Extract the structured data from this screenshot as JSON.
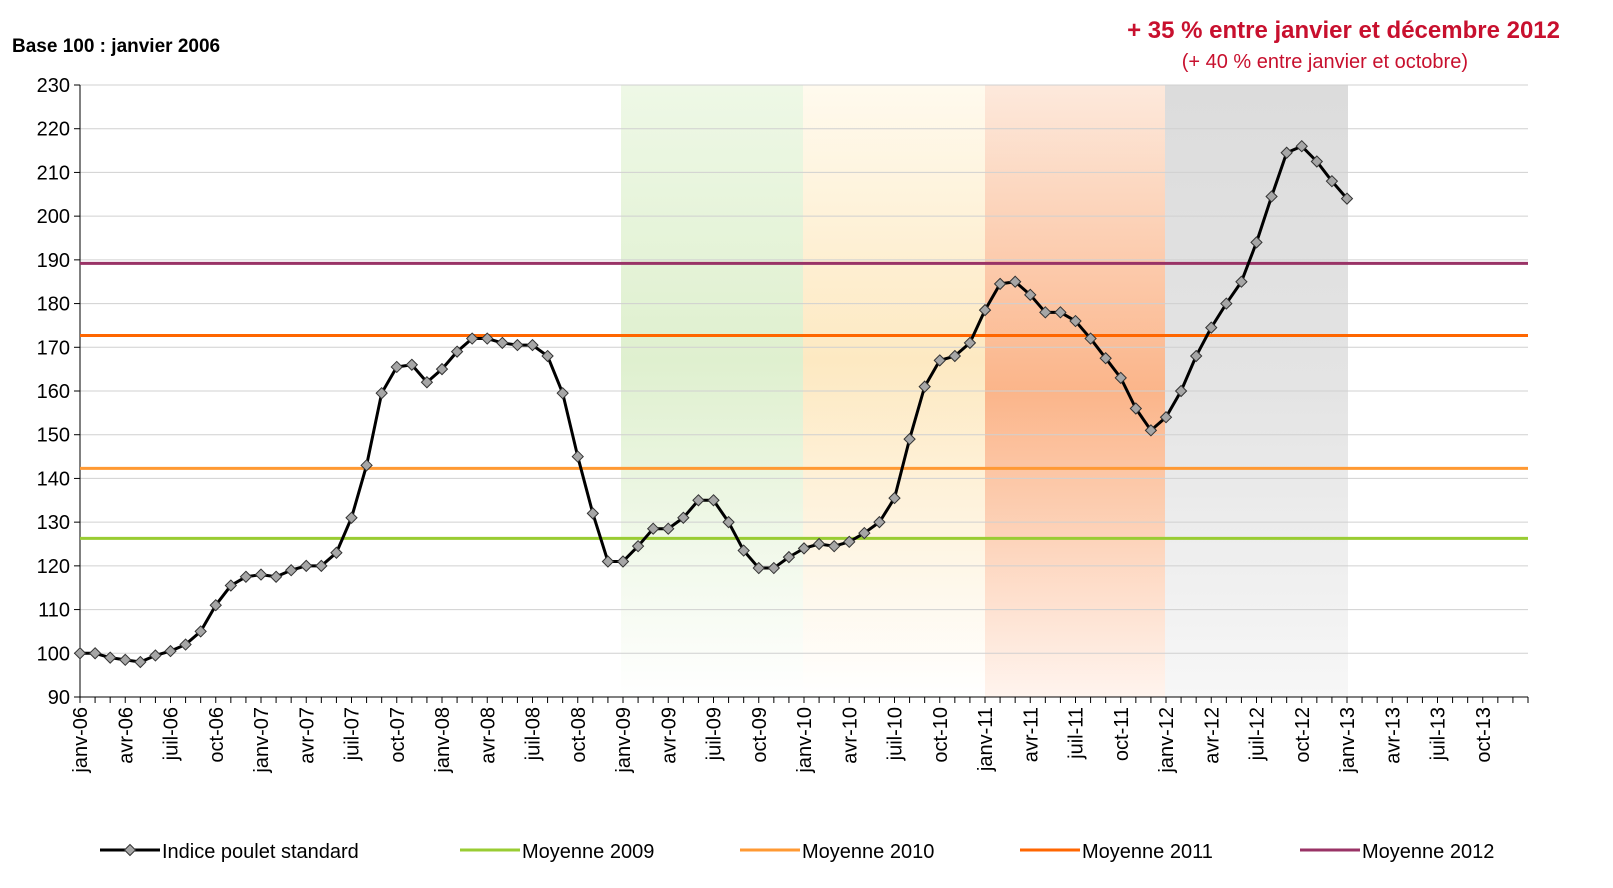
{
  "chart_data": {
    "type": "line",
    "title": "Base 100 : janvier 2006",
    "annotations": [
      "+ 35 % entre janvier et décembre 2012",
      "(+ 40 % entre janvier et octobre)"
    ],
    "categories": [
      "janv-06",
      null,
      null,
      "avr-06",
      null,
      null,
      "juil-06",
      null,
      null,
      "oct-06",
      null,
      null,
      "janv-07",
      null,
      null,
      "avr-07",
      null,
      null,
      "juil-07",
      null,
      null,
      "oct-07",
      null,
      null,
      "janv-08",
      null,
      null,
      "avr-08",
      null,
      null,
      "juil-08",
      null,
      null,
      "oct-08",
      null,
      null,
      "janv-09",
      null,
      null,
      "avr-09",
      null,
      null,
      "juil-09",
      null,
      null,
      "oct-09",
      null,
      null,
      "janv-10",
      null,
      null,
      "avr-10",
      null,
      null,
      "juil-10",
      null,
      null,
      "oct-10",
      null,
      null,
      "janv-11",
      null,
      null,
      "avr-11",
      null,
      null,
      "juil-11",
      null,
      null,
      "oct-11",
      null,
      null,
      "janv-12",
      null,
      null,
      "avr-12",
      null,
      null,
      "juil-12",
      null,
      null,
      "oct-12",
      null,
      null,
      "janv-13",
      null,
      null,
      "avr-13",
      null,
      null,
      "juil-13",
      null,
      null,
      "oct-13",
      null,
      null,
      null
    ],
    "series": [
      {
        "name": "Indice poulet standard",
        "color": "#000000",
        "marker_color": "#a6a6a6",
        "values": [
          100,
          100,
          99,
          98.5,
          98,
          99.5,
          100.5,
          102,
          105,
          111,
          115.5,
          117.5,
          118,
          117.5,
          119,
          120,
          120,
          123,
          131,
          143,
          159.5,
          165.5,
          166,
          162,
          165,
          169,
          172,
          172,
          171,
          170.5,
          170.5,
          168,
          159.5,
          145,
          132,
          121,
          121,
          124.5,
          128.5,
          128.5,
          131,
          135,
          135,
          130,
          123.5,
          119.5,
          119.5,
          122,
          124,
          125,
          124.5,
          125.5,
          127.5,
          130,
          135.5,
          149,
          161,
          167,
          168,
          171,
          178.5,
          184.5,
          185,
          182,
          178,
          178,
          176,
          172,
          167.5,
          163,
          156,
          151,
          154,
          160,
          168,
          174.5,
          180,
          185,
          194,
          204.5,
          214.5,
          216,
          212.5,
          208,
          204,
          null,
          null,
          null,
          null,
          null,
          null,
          null,
          null,
          null,
          null,
          null,
          null
        ]
      }
    ],
    "reference_lines": [
      {
        "name": "Moyenne 2009",
        "color": "#99cc33",
        "value": 126.3
      },
      {
        "name": "Moyenne 2010",
        "color": "#ff9933",
        "value": 142.3
      },
      {
        "name": "Moyenne 2011",
        "color": "#ff6600",
        "value": 172.7
      },
      {
        "name": "Moyenne 2012",
        "color": "#993366",
        "value": 189.2
      }
    ],
    "ylim": [
      90,
      230
    ],
    "yticks": [
      90,
      100,
      110,
      120,
      130,
      140,
      150,
      160,
      170,
      180,
      190,
      200,
      210,
      220,
      230
    ],
    "grid": true,
    "legend": "bottom"
  }
}
